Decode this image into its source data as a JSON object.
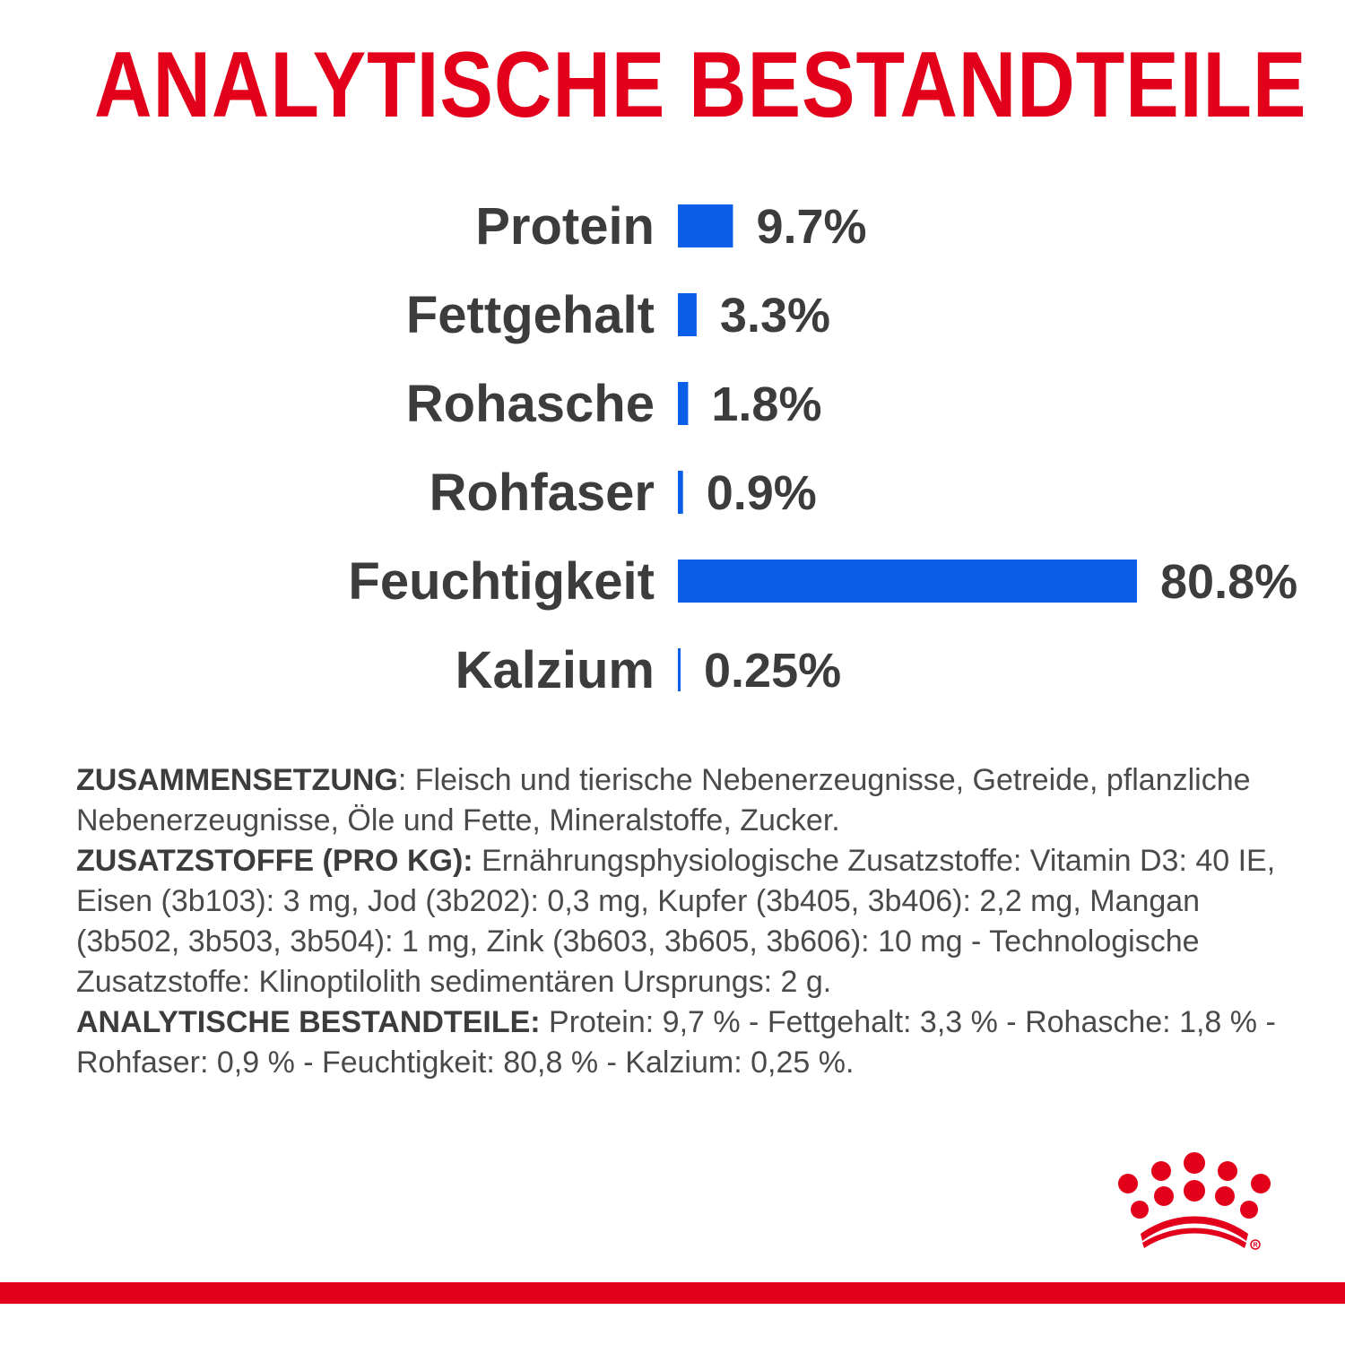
{
  "title": "ANALYTISCHE BESTANDTEILE",
  "colors": {
    "title": "#e2001a",
    "bar": "#0b5ee8",
    "text": "#3c3c3c",
    "body_text": "#4a4a4a",
    "stripe": "#e2001a",
    "logo": "#e2001a"
  },
  "chart_data": {
    "type": "bar",
    "orientation": "horizontal",
    "categories": [
      "Protein",
      "Fettgehalt",
      "Rohasche",
      "Rohfaser",
      "Feuchtigkeit",
      "Kalzium"
    ],
    "values": [
      9.7,
      3.3,
      1.8,
      0.9,
      80.8,
      0.25
    ],
    "value_labels": [
      "9.7%",
      "3.3%",
      "1.8%",
      "0.9%",
      "80.8%",
      "0.25%"
    ],
    "unit": "%",
    "xlim": [
      0,
      80.8
    ],
    "grid": false,
    "legend": "none"
  },
  "composition": {
    "zusammensetzung_lead": "ZUSAMMENSETZUNG",
    "zusammensetzung_text": ": Fleisch und tierische Nebenerzeugnisse, Getreide, pflanzliche Nebenerzeugnisse, Öle und Fette, Mineralstoffe, Zucker.",
    "zusatzstoffe_lead": "ZUSATZSTOFFE (PRO KG):",
    "zusatzstoffe_text": " Ernährungsphysiologische Zusatzstoffe: Vitamin D3: 40 IE, Eisen (3b103): 3 mg, Jod (3b202): 0,3 mg, Kupfer (3b405, 3b406): 2,2 mg, Mangan (3b502, 3b503, 3b504): 1 mg, Zink (3b603, 3b605, 3b606): 10 mg - Technologische Zusatzstoffe: Klinoptilolith sedimentären Ursprungs: 2 g.",
    "analytische_lead": "ANALYTISCHE BESTANDTEILE:",
    "analytische_text": " Protein: 9,7 % - Fettgehalt: 3,3 % - Rohasche: 1,8 % - Rohfaser: 0,9 % - Feuchtigkeit: 80,8 % - Kalzium: 0,25 %."
  },
  "logo": {
    "icon": "royal-canin-crown-icon"
  }
}
